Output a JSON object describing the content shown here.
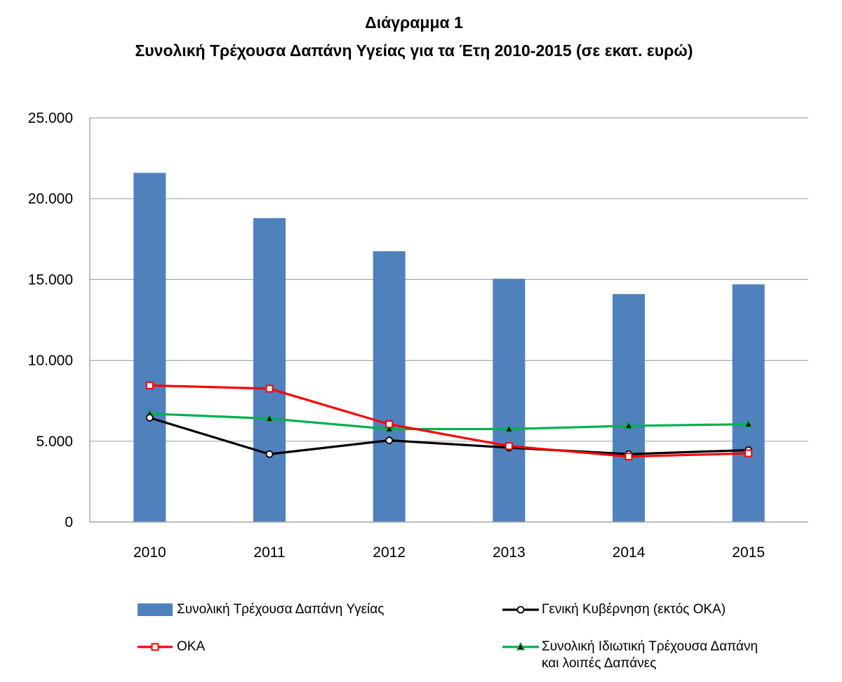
{
  "title": "Διάγραμμα 1",
  "subtitle": "Συνολική Τρέχουσα Δαπάνη Υγείας για τα Έτη 2010-2015 (σε εκατ. ευρώ)",
  "colors": {
    "bars": "#4F81BD",
    "government": "#000000",
    "oka": "#FF0000",
    "private": "#00B050",
    "grid": "#A6A6A6"
  },
  "chart_data": {
    "type": "bar",
    "categories": [
      "2010",
      "2011",
      "2012",
      "2013",
      "2014",
      "2015"
    ],
    "ylim": [
      0,
      25000
    ],
    "yticks": [
      0,
      5000,
      10000,
      15000,
      20000,
      25000
    ],
    "ytick_labels": [
      "0",
      "5.000",
      "10.000",
      "15.000",
      "20.000",
      "25.000"
    ],
    "grid": true,
    "legend_position": "bottom",
    "series": [
      {
        "name": "Συνολική Τρέχουσα Δαπάνη Υγείας",
        "type": "bar",
        "marker": "none",
        "values": [
          21600,
          18800,
          16750,
          15050,
          14100,
          14700
        ]
      },
      {
        "name": "Γενική Κυβέρνηση (εκτός ΟΚΑ)",
        "type": "line",
        "marker": "circle",
        "values": [
          6450,
          4200,
          5050,
          4600,
          4200,
          4450
        ]
      },
      {
        "name": "ΟΚΑ",
        "type": "line",
        "marker": "square",
        "values": [
          8450,
          8250,
          6050,
          4700,
          4050,
          4250
        ]
      },
      {
        "name": "Συνολική Ιδιωτική Τρέχουσα Δαπάνη και λοιπές Δαπάνες",
        "type": "line",
        "marker": "triangle",
        "values": [
          6700,
          6400,
          5750,
          5750,
          5950,
          6050
        ]
      }
    ],
    "legend_text_lines": [
      [
        "Συνολική Τρέχουσα Δαπάνη Υγείας"
      ],
      [
        "Γενική Κυβέρνηση (εκτός ΟΚΑ)"
      ],
      [
        "ΟΚΑ"
      ],
      [
        "Συνολική Ιδιωτική Τρέχουσα Δαπάνη",
        "και λοιπές Δαπάνες"
      ]
    ]
  }
}
